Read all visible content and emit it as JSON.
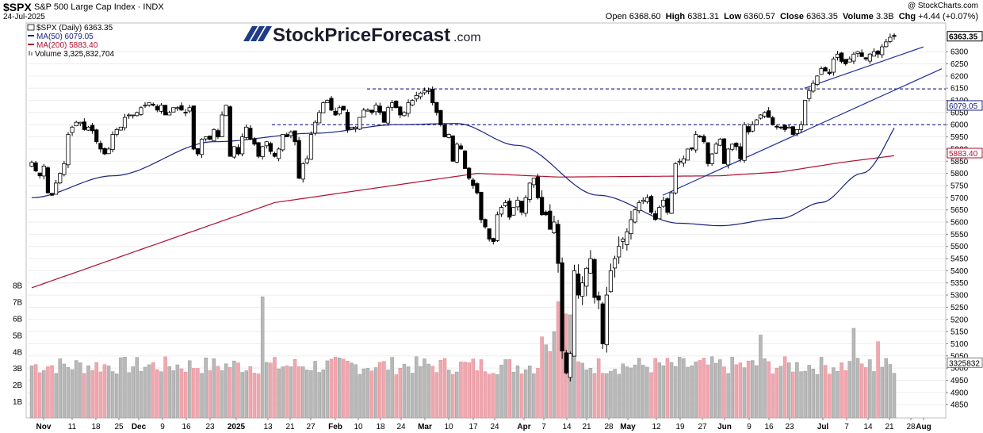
{
  "header": {
    "symbol": "$SPX",
    "name": "S&P 500 Large Cap Index",
    "exchange": "INDX",
    "date": "24-Jul-2025",
    "copyright": "@ StockCharts.com",
    "open_label": "Open",
    "open": "6368.60",
    "high_label": "High",
    "high": "6381.31",
    "low_label": "Low",
    "low": "6360.57",
    "close_label": "Close",
    "close": "6363.35",
    "volume_label": "Volume",
    "volume": "3.3B",
    "chg_label": "Chg",
    "chg": "+4.44 (+0.07%)"
  },
  "legend": {
    "price": "$SPX (Daily) 6363.35",
    "ma50": "MA(50) 6079.05",
    "ma200": "MA(200) 5883.40",
    "volume": "Volume 3,325,832,704"
  },
  "watermark": {
    "text": "StockPriceForecast",
    "suffix": ".com"
  },
  "colors": {
    "up_candle": "#ffffff",
    "down_candle": "#000000",
    "ma50": "#1a237e",
    "ma200": "#b01030",
    "volume_up": "#b8b8b8",
    "volume_down": "#f0a8b0",
    "dashed_lines": "#000080",
    "trendlines": "#1f2f9f"
  },
  "chart_data": {
    "type": "candlestick",
    "title": "$SPX (Daily)",
    "price_axis": {
      "ticks": [
        4850,
        4900,
        4950,
        5000,
        5050,
        5100,
        5150,
        5200,
        5250,
        5300,
        5350,
        5400,
        5450,
        5500,
        5550,
        5600,
        5650,
        5700,
        5750,
        5800,
        5850,
        5900,
        5950,
        6000,
        6050,
        6100,
        6150,
        6200,
        6250,
        6300
      ],
      "range": [
        4818,
        6382
      ],
      "last_price_label": "6363.35",
      "ma50_label": "6079.05",
      "ma200_label": "5883.40"
    },
    "volume_axis": {
      "ticks": [
        "1B",
        "2B",
        "3B",
        "4B",
        "5B",
        "6B",
        "7B",
        "8B"
      ],
      "range_billions": [
        0,
        8.6
      ],
      "last_volume_label": "3325832"
    },
    "x_axis": {
      "labels": [
        "Nov",
        "11",
        "18",
        "25",
        "Dec",
        "9",
        "16",
        "23",
        "2025",
        "13",
        "21",
        "27",
        "Feb",
        "10",
        "18",
        "24",
        "Mar",
        "10",
        "17",
        "24",
        "Apr",
        "7",
        "14",
        "21",
        "28",
        "May",
        "12",
        "19",
        "27",
        "Jun",
        "9",
        "16",
        "23",
        "Jul",
        "7",
        "14",
        "21",
        "28",
        "Aug"
      ],
      "bold_labels": [
        "Nov",
        "Dec",
        "2025",
        "Feb",
        "Mar",
        "Apr",
        "May",
        "Jun",
        "Jul",
        "Aug"
      ]
    },
    "horizontal_levels": [
      6147,
      6000
    ],
    "closes": [
      5845,
      5810,
      5790,
      5830,
      5720,
      5710,
      5760,
      5800,
      5840,
      5960,
      5990,
      6010,
      6010,
      5980,
      5990,
      5975,
      5930,
      5900,
      5880,
      5900,
      5960,
      5980,
      5990,
      6030,
      6040,
      6040,
      6050,
      6070,
      6080,
      6090,
      6080,
      6060,
      6080,
      6040,
      6050,
      6070,
      6070,
      6060,
      6050,
      6070,
      5900,
      5880,
      5940,
      5950,
      5940,
      5980,
      5950,
      6040,
      6080,
      5870,
      5910,
      5880,
      5950,
      5990,
      5940,
      5920,
      5870,
      5910,
      5930,
      5890,
      5870,
      5900,
      5960,
      5950,
      5970,
      5930,
      5780,
      5840,
      5860,
      5960,
      6010,
      6050,
      6090,
      6100,
      6060,
      6040,
      6070,
      6060,
      5980,
      5990,
      5990,
      6030,
      6060,
      6060,
      6050,
      6080,
      6050,
      6010,
      6070,
      6090,
      6070,
      6040,
      6050,
      6090,
      6100,
      6120,
      6130,
      6140,
      6140,
      6090,
      6050,
      6000,
      5950,
      5960,
      5850,
      5920,
      5900,
      5820,
      5780,
      5750,
      5720,
      5610,
      5580,
      5530,
      5520,
      5630,
      5660,
      5680,
      5620,
      5660,
      5690,
      5640,
      5700,
      5760,
      5780,
      5700,
      5630,
      5630,
      5570,
      5600,
      5430,
      5070,
      4980,
      5060,
      5400,
      5300,
      5350,
      5410,
      5450,
      5290,
      5280,
      5100,
      5300,
      5400,
      5450,
      5500,
      5530,
      5560,
      5610,
      5650,
      5680,
      5690,
      5700,
      5640,
      5610,
      5660,
      5690,
      5640,
      5720,
      5840,
      5850,
      5860,
      5900,
      5900,
      5960,
      5950,
      5930,
      5840,
      5880,
      5920,
      5940,
      5840,
      5900,
      5920,
      5910,
      5860,
      6000,
      5970,
      6000,
      6020,
      6040,
      6050,
      6030,
      6000,
      5990,
      5990,
      5980,
      5990,
      5960,
      5980,
      6000,
      6100,
      6140,
      6170,
      6200,
      6230,
      6220,
      6210,
      6270,
      6290,
      6260,
      6250,
      6270,
      6290,
      6300,
      6280,
      6270,
      6290,
      6300,
      6290,
      6320,
      6340,
      6359,
      6363
    ]
  }
}
